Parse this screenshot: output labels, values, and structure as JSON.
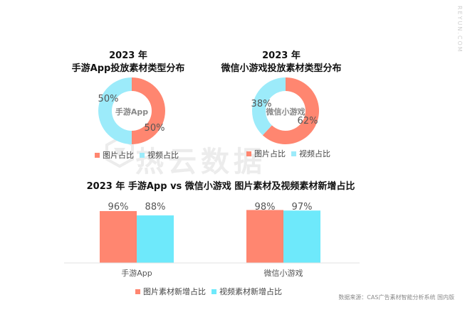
{
  "site_url": "REYUN.COM",
  "watermark": "热云数据",
  "source_note": "数据来源：CAS广告素材智能分析系统 国内版",
  "colors": {
    "image": "#FF8670",
    "video": "#9CEBFA",
    "video_bar": "#6EE9FB"
  },
  "chart_data": [
    {
      "type": "pie",
      "title_line1": "2023 年",
      "title_line2": "手游App投放素材类型分布",
      "center_label": "手游App",
      "slices": [
        {
          "name": "图片占比",
          "value": 50,
          "label": "50%"
        },
        {
          "name": "视频占比",
          "value": 50,
          "label": "50%"
        }
      ],
      "legend": [
        "图片占比",
        "视频占比"
      ]
    },
    {
      "type": "pie",
      "title_line1": "2023 年",
      "title_line2": "微信小游戏投放素材类型分布",
      "center_label": "微信小游戏",
      "slices": [
        {
          "name": "图片占比",
          "value": 62,
          "label": "62%"
        },
        {
          "name": "视频占比",
          "value": 38,
          "label": "38%"
        }
      ],
      "legend": [
        "图片占比",
        "视频占比"
      ]
    },
    {
      "type": "bar",
      "title": "2023 年 手游App vs 微信小游戏 图片素材及视频素材新增占比",
      "categories": [
        "手游App",
        "微信小游戏"
      ],
      "series": [
        {
          "name": "图片素材新增占比",
          "values": [
            96,
            98
          ],
          "labels": [
            "96%",
            "98%"
          ]
        },
        {
          "name": "视频素材新增占比",
          "values": [
            88,
            97
          ],
          "labels": [
            "88%",
            "97%"
          ]
        }
      ],
      "ylim": [
        0,
        100
      ],
      "legend": [
        "图片素材新增占比",
        "视频素材新增占比"
      ]
    }
  ]
}
